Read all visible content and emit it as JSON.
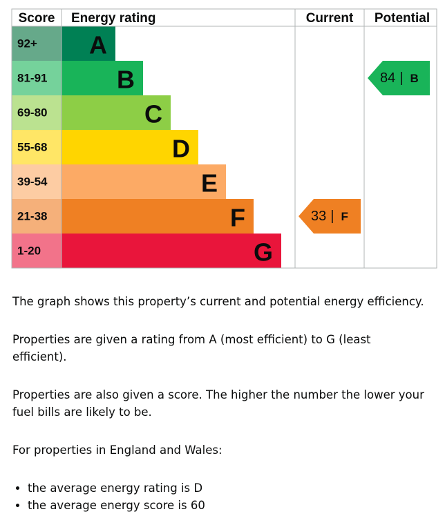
{
  "graph": {
    "headers": [
      "Score",
      "Energy rating",
      "Current",
      "Potential"
    ],
    "bands": [
      {
        "score": "92+",
        "letter": "A",
        "color": "#008054",
        "light": "#66a98a"
      },
      {
        "score": "81-91",
        "letter": "B",
        "color": "#19b459",
        "light": "#75d29b"
      },
      {
        "score": "69-80",
        "letter": "C",
        "color": "#8dce46",
        "light": "#bbe290"
      },
      {
        "score": "55-68",
        "letter": "D",
        "color": "#ffd500",
        "light": "#ffe666"
      },
      {
        "score": "39-54",
        "letter": "E",
        "color": "#fcaa65",
        "light": "#fdcca3"
      },
      {
        "score": "21-38",
        "letter": "F",
        "color": "#ef8023",
        "light": "#f5b07a"
      },
      {
        "score": "1-20",
        "letter": "G",
        "color": "#e9153b",
        "light": "#f2738a"
      }
    ],
    "current": {
      "score": 33,
      "letter": "F"
    },
    "potential": {
      "score": 84,
      "letter": "B"
    }
  },
  "paragraphs": [
    "The graph shows this property’s current and potential energy efficiency.",
    "Properties are given a rating from A (most efficient) to G (least efficient).",
    "Properties are also given a score. The higher the number the lower your fuel bills are likely to be.",
    "For properties in England and Wales:"
  ],
  "list": [
    "the average energy rating is D",
    "the average energy score is 60"
  ]
}
